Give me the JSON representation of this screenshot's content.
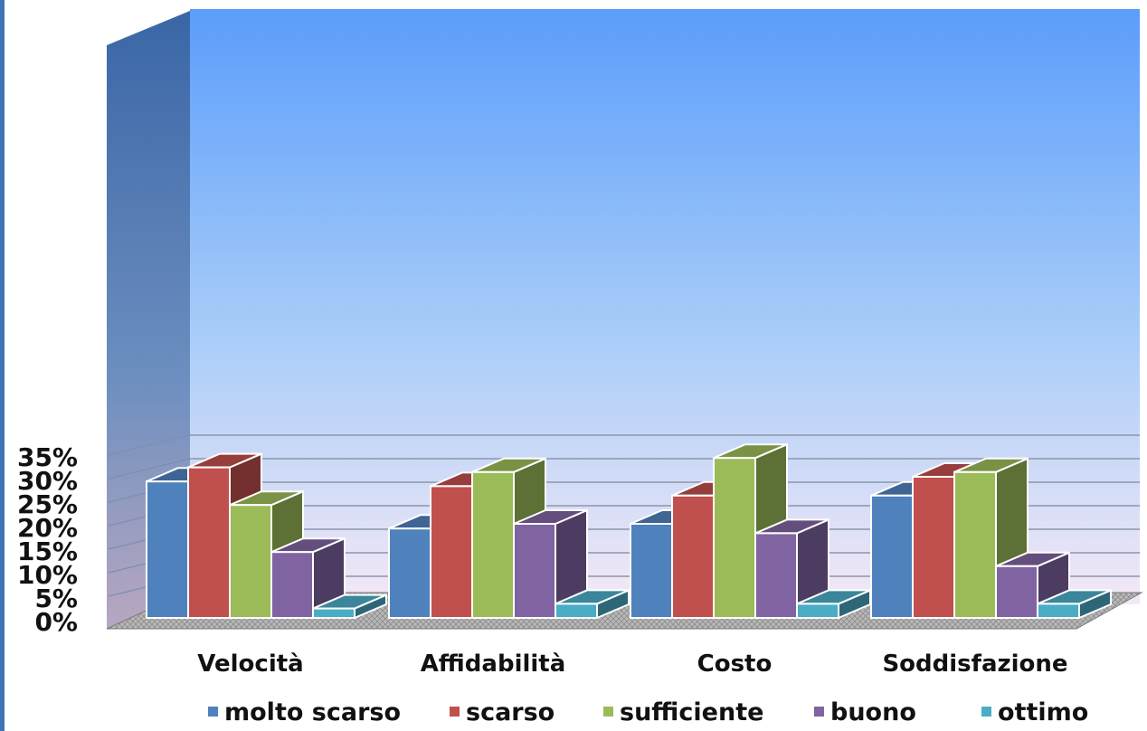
{
  "chart_data": {
    "type": "bar",
    "title": "",
    "categories": [
      "Velocità",
      "Affidabilità",
      "Costo",
      "Soddisfazione"
    ],
    "series": [
      {
        "name": "molto scarso",
        "color": "#4f81bd",
        "values": [
          29,
          19,
          20,
          26
        ]
      },
      {
        "name": "scarso",
        "color": "#c0504d",
        "values": [
          32,
          28,
          26,
          30
        ]
      },
      {
        "name": "sufficiente",
        "color": "#9bbb59",
        "values": [
          24,
          31,
          34,
          31
        ]
      },
      {
        "name": "buono",
        "color": "#8064a2",
        "values": [
          14,
          20,
          18,
          11
        ]
      },
      {
        "name": "ottimo",
        "color": "#4bacc6",
        "values": [
          2,
          3,
          3,
          3
        ]
      }
    ],
    "ylim": [
      0,
      35
    ],
    "yticks": [
      "0%",
      "5%",
      "10%",
      "15%",
      "20%",
      "25%",
      "30%",
      "35%"
    ],
    "grid": true,
    "legend": "bottom",
    "style": "3d-clustered-column"
  }
}
